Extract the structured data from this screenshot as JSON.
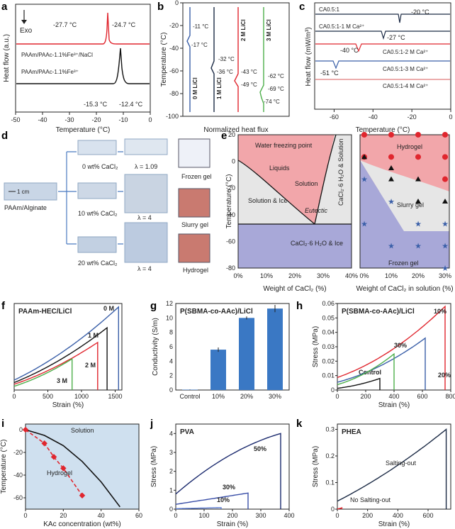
{
  "chart_data": [
    {
      "panel": "a",
      "type": "line",
      "xlabel": "Temperature (°C)",
      "ylabel": "Heat flow (a.u.)",
      "xlim": [
        -50,
        0
      ],
      "xticks": [
        -50,
        -40,
        -30,
        -20,
        -10,
        0
      ],
      "exo_label": "Exo",
      "series": [
        {
          "name": "PAAm/PAAc-1.1%Fe³⁺/NaCl",
          "color": "#e0262e",
          "peaks": [
            -27.7,
            -24.7
          ]
        },
        {
          "name": "PAAm/PAAc-1.1%Fe³⁺",
          "color": "#111111",
          "peaks": [
            -15.3,
            -12.4
          ]
        }
      ],
      "annotations": [
        "-27.7 °C",
        "-24.7 °C",
        "-15.3 °C",
        "-12.4 °C"
      ]
    },
    {
      "panel": "b",
      "type": "line",
      "xlabel": "Normalized heat flux",
      "ylabel": "Temperature (°C)",
      "ylim": [
        -100,
        0
      ],
      "yticks": [
        0,
        -20,
        -40,
        -60,
        -80,
        -100
      ],
      "series": [
        {
          "name": "0 M LiCl",
          "color": "#3a5fa8",
          "transitions": [
            -11,
            -17
          ]
        },
        {
          "name": "1 M LiCl",
          "color": "#1b2a45",
          "transitions": [
            -32,
            -36
          ]
        },
        {
          "name": "2 M LiCl",
          "color": "#e0262e",
          "transitions": [
            -43,
            -49
          ]
        },
        {
          "name": "3 M LiCl",
          "color": "#4daf4a",
          "transitions": [
            -62,
            -69,
            -74
          ]
        }
      ],
      "annotations": [
        "-11 °C",
        "-17 °C",
        "-32 °C",
        "-36 °C",
        "-43 °C",
        "-49 °C",
        "-62 °C",
        "-69 °C",
        "-74 °C"
      ]
    },
    {
      "panel": "c",
      "type": "line",
      "xlabel": "Temperature (°C)",
      "ylabel": "Heat flow (mW/m³)",
      "xlim": [
        -70,
        0
      ],
      "xticks": [
        -60,
        -40,
        -20,
        0
      ],
      "series": [
        {
          "name": "CA0.5:1",
          "color": "#1b2a45",
          "peak": -20
        },
        {
          "name": "CA0.5:1-1 M Ca²⁺",
          "color": "#1b2a45",
          "peak": -27
        },
        {
          "name": "CA0.5:1-2 M Ca²⁺",
          "color": "#e0262e",
          "peak": -40
        },
        {
          "name": "CA0.5:1-3 M Ca²⁺",
          "color": "#3a5fa8",
          "peak": -51
        },
        {
          "name": "CA0.5:1-4 M Ca²⁺",
          "color": "#e07a7a",
          "peak": null
        }
      ],
      "annotations": [
        "-20 °C",
        "-27 °C",
        "-40 °C",
        "-51 °C"
      ]
    },
    {
      "panel": "e",
      "type": "phase-diagram",
      "xlabel": "Weight of CaCl₂ (%)",
      "ylabel": "Temperature (°C)",
      "ylim": [
        -80,
        20
      ],
      "yticks": [
        20,
        0,
        -20,
        -40,
        -60,
        -80
      ],
      "xticks": [
        "0%",
        "10%",
        "20%",
        "30%",
        "40%"
      ],
      "regions": [
        "Solution",
        "Solution & Ice",
        "CaCl₂·6 H₂O & Solution",
        "CaCl₂·6 H₂O & Ice"
      ],
      "annotations": [
        "Water freezing point",
        "Liquids",
        "Eutectic"
      ],
      "eutectic": {
        "x": 30,
        "y": -55
      }
    },
    {
      "panel": "e2",
      "type": "scatter",
      "xlabel": "Weight of CaCl₂ in solution (%)",
      "xticks": [
        "0%",
        "10%",
        "20%",
        "30%"
      ],
      "regions": [
        "Hydrogel",
        "Slurry gel",
        "Frozen gel"
      ],
      "series": [
        {
          "name": "Hydrogel",
          "marker": "circle",
          "color": "#e0262e",
          "x": [
            0,
            10,
            20,
            30,
            0,
            10,
            20,
            30,
            30
          ],
          "y": [
            20,
            20,
            20,
            20,
            0,
            0,
            0,
            0,
            -20
          ]
        },
        {
          "name": "Slurry gel",
          "marker": "triangle",
          "color": "#111111",
          "x": [
            0,
            10,
            10,
            20,
            20,
            30
          ],
          "y": [
            0,
            -10,
            -20,
            -20,
            -40,
            -40
          ]
        },
        {
          "name": "Frozen gel",
          "marker": "star",
          "color": "#3a5fa8",
          "x": [
            0,
            0,
            10,
            10,
            20,
            20,
            30,
            30,
            30
          ],
          "y": [
            -20,
            -60,
            -40,
            -80,
            -60,
            -80,
            -60,
            -80,
            -100
          ]
        }
      ]
    },
    {
      "panel": "f",
      "type": "line",
      "title": "PAAm-HEC/LiCl",
      "xlabel": "Strain (%)",
      "ylabel": "Normalized stress",
      "xlim": [
        0,
        1600
      ],
      "xticks": [
        0,
        500,
        1000,
        1500
      ],
      "series": [
        {
          "name": "0 M",
          "color": "#3a5fa8",
          "break_strain": 1550,
          "break_stress": 0.96
        },
        {
          "name": "1 M",
          "color": "#111111",
          "break_strain": 1380,
          "break_stress": 0.72
        },
        {
          "name": "2 M",
          "color": "#e0262e",
          "break_strain": 1240,
          "break_stress": 0.55
        },
        {
          "name": "3 M",
          "color": "#4daf4a",
          "break_strain": 860,
          "break_stress": 0.36
        }
      ]
    },
    {
      "panel": "g",
      "type": "bar",
      "title": "P(SBMA-co-AAc)/LiCl",
      "xlabel": "",
      "ylabel": "Conductivity (S/m)",
      "categories": [
        "Control",
        "10%",
        "20%",
        "30%"
      ],
      "values": [
        0.05,
        5.6,
        10.0,
        11.3
      ],
      "errors": [
        0.02,
        0.3,
        0.2,
        0.5
      ],
      "ylim": [
        0,
        12
      ],
      "yticks": [
        0,
        2,
        4,
        6,
        8,
        10,
        12
      ]
    },
    {
      "panel": "h",
      "type": "line",
      "title": "P(SBMA-co-AAc)/LiCl",
      "xlabel": "Strain (%)",
      "ylabel": "Stress (MPa)",
      "xlim": [
        0,
        800
      ],
      "ylim": [
        0,
        0.06
      ],
      "xticks": [
        0,
        200,
        400,
        600,
        800
      ],
      "yticks": [
        0.0,
        0.01,
        0.02,
        0.03,
        0.04,
        0.05,
        0.06
      ],
      "series": [
        {
          "name": "Control",
          "color": "#111111",
          "break_strain": 300,
          "break_stress": 0.008
        },
        {
          "name": "10%",
          "color": "#e0262e",
          "break_strain": 760,
          "break_stress": 0.058
        },
        {
          "name": "20%",
          "color": "#3a5fa8",
          "break_strain": 620,
          "break_stress": 0.036
        },
        {
          "name": "30%",
          "color": "#4daf4a",
          "break_strain": 400,
          "break_stress": 0.025
        }
      ]
    },
    {
      "panel": "i",
      "type": "phase-diagram",
      "xlabel": "KAc concentration (wt%)",
      "ylabel": "Temperature (°C)",
      "xlim": [
        0,
        60
      ],
      "ylim": [
        -70,
        5
      ],
      "xticks": [
        0,
        20,
        40,
        60
      ],
      "yticks": [
        0,
        -20,
        -40,
        -60
      ],
      "regions": [
        "Solution",
        "Hydrogel"
      ],
      "series": [
        {
          "name": "Solution boundary",
          "color": "#111111",
          "x": [
            0,
            10,
            20,
            30,
            40,
            50
          ],
          "y": [
            0,
            -5,
            -14,
            -28,
            -46,
            -68
          ]
        },
        {
          "name": "Hydrogel boundary",
          "color": "#e0262e",
          "x": [
            0,
            10,
            15,
            20,
            30
          ],
          "y": [
            0,
            -12,
            -24,
            -34,
            -58
          ]
        }
      ]
    },
    {
      "panel": "j",
      "type": "line",
      "title": "PVA",
      "xlabel": "Strain (%)",
      "ylabel": "Stress (MPa)",
      "xlim": [
        0,
        400
      ],
      "ylim": [
        0,
        4.5
      ],
      "xticks": [
        0,
        100,
        200,
        300,
        400
      ],
      "yticks": [
        0,
        1,
        2,
        3,
        4
      ],
      "series": [
        {
          "name": "50%",
          "color": "#1b2a6e",
          "break_strain": 370,
          "break_stress": 4.0
        },
        {
          "name": "30%",
          "color": "#3a4fa8",
          "break_strain": 255,
          "break_stress": 0.85
        },
        {
          "name": "10%",
          "color": "#5a7ad0",
          "break_strain": 160,
          "break_stress": 0.08
        }
      ]
    },
    {
      "panel": "k",
      "type": "line",
      "title": "PHEA",
      "xlabel": "Strain (%)",
      "ylabel": "Stress (MPa)",
      "xlim": [
        0,
        750
      ],
      "ylim": [
        0,
        0.32
      ],
      "xticks": [
        0,
        200,
        400,
        600
      ],
      "yticks": [
        0.0,
        0.1,
        0.2,
        0.3
      ],
      "series": [
        {
          "name": "Salting-out",
          "color": "#1b2a45",
          "break_strain": 720,
          "break_stress": 0.3
        },
        {
          "name": "No Salting-out",
          "color": "#e0262e",
          "break_strain": 30,
          "break_stress": 0.005
        }
      ]
    }
  ],
  "panel_d": {
    "left_label": "PAAm/Alginate",
    "scale_bar": "1 cm",
    "rows": [
      {
        "salt": "0 wt% CaCl₂",
        "stretch": "λ = 1.09",
        "gel": "Frozen gel"
      },
      {
        "salt": "10 wt% CaCl₂",
        "stretch": "λ = 4",
        "gel": "Slurry gel"
      },
      {
        "salt": "20 wt% CaCl₂",
        "stretch": "λ = 4",
        "gel": "Hydrogel"
      }
    ]
  },
  "panel_letters": [
    "a",
    "b",
    "c",
    "d",
    "e",
    "f",
    "g",
    "h",
    "i",
    "j",
    "k"
  ]
}
